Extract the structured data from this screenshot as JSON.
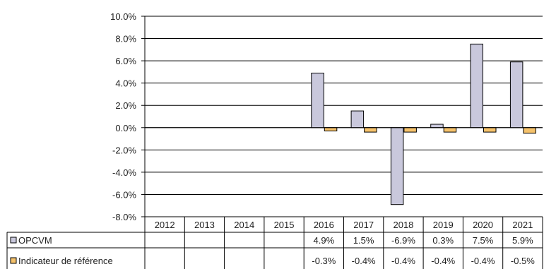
{
  "chart_data": {
    "type": "bar",
    "categories": [
      "2012",
      "2013",
      "2014",
      "2015",
      "2016",
      "2017",
      "2018",
      "2019",
      "2020",
      "2021"
    ],
    "series": [
      {
        "name": "OPCVM",
        "color": "#c9c8dc",
        "values": [
          null,
          null,
          null,
          null,
          4.9,
          1.5,
          -6.9,
          0.3,
          7.5,
          5.9
        ],
        "labels": [
          "",
          "",
          "",
          "",
          "4.9%",
          "1.5%",
          "-6.9%",
          "0.3%",
          "7.5%",
          "5.9%"
        ]
      },
      {
        "name": "Indicateur de référence",
        "color": "#f5c26b",
        "values": [
          null,
          null,
          null,
          null,
          -0.3,
          -0.4,
          -0.4,
          -0.4,
          -0.4,
          -0.5
        ],
        "labels": [
          "",
          "",
          "",
          "",
          "-0.3%",
          "-0.4%",
          "-0.4%",
          "-0.4%",
          "-0.4%",
          "-0.5%"
        ]
      }
    ],
    "ylim": [
      -8,
      10
    ],
    "yticks": [
      "10.0%",
      "8.0%",
      "6.0%",
      "4.0%",
      "2.0%",
      "0.0%",
      "-2.0%",
      "-4.0%",
      "-6.0%",
      "-8.0%"
    ],
    "grid": true,
    "legend": "data-table"
  }
}
